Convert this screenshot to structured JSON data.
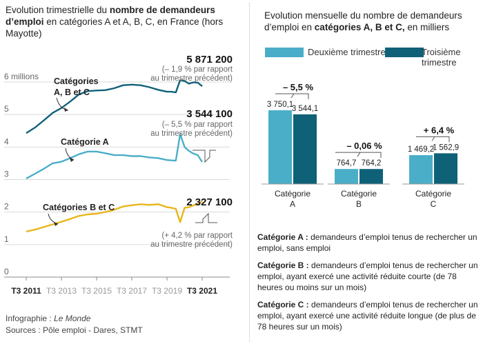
{
  "colors": {
    "teal_dark": "#0f6178",
    "teal_light": "#4aaec8",
    "yellow": "#e7b619",
    "axis": "#888888",
    "grid": "#d9d9d9",
    "callout": "#555555"
  },
  "left": {
    "title_pre": "Evolution trimestrielle du ",
    "title_bold": "nombre de demandeurs d’emploi",
    "title_post": " en catégories A et A, B, C, en France (hors Mayotte)",
    "label_abc_line1": "Catégories",
    "label_abc_line2": "A, B et C",
    "label_a": "Catégorie A",
    "label_bc": "Catégories B et C",
    "value_abc": "5 871 200",
    "note_abc_line1": "(– 1,9 % par rapport",
    "note_abc_line2": "au trimestre précédent)",
    "value_a": "3 544 100",
    "note_a_line1": "(– 5,5 % par rapport",
    "note_a_line2": "au trimestre précédent)",
    "value_bc": "2 327 100",
    "note_bc_line1": "(+ 4,2 % par rapport",
    "note_bc_line2": "au trimestre précédent)"
  },
  "right": {
    "title_pre": "Evolution mensuelle du nombre de demandeurs d’emploi en ",
    "title_bold": "catégories A, B et C,",
    "title_post": " en milliers",
    "legend": [
      "Deuxième trimestre",
      "Troisième trimestre"
    ]
  },
  "definitions": [
    {
      "term": "Catégorie A :",
      "text": " demandeurs d’emploi tenus de rechercher un emploi, sans emploi"
    },
    {
      "term": "Catégorie B :",
      "text": " demandeurs d’emploi tenus de rechercher un emploi, ayant exercé une activité réduite courte (de 78 heures ou moins sur un mois)"
    },
    {
      "term": "Catégorie C :",
      "text": " demandeurs d’emploi tenus de rechercher un emploi, ayant exercé une activité réduite longue (de plus de 78 heures sur un mois)"
    }
  ],
  "footer": {
    "credit_pre": "Infographie : ",
    "credit_name": "Le Monde",
    "sources": "Sources : Pôle emploi - Dares, STMT"
  },
  "chart_data": [
    {
      "type": "line",
      "title": "Evolution trimestrielle du nombre de demandeurs d’emploi en catégories A et A, B, C, en France (hors Mayotte)",
      "xlim": [
        2011.5,
        2021.5
      ],
      "ylim": [
        0,
        6
      ],
      "y_ticks": [
        {
          "value": 0,
          "label": "0"
        },
        {
          "value": 1,
          "label": "1"
        },
        {
          "value": 2,
          "label": "2"
        },
        {
          "value": 3,
          "label": "3"
        },
        {
          "value": 4,
          "label": "4"
        },
        {
          "value": 5,
          "label": "5"
        },
        {
          "value": 6,
          "label": "6 millions"
        }
      ],
      "x_ticks": [
        {
          "value": 2011.5,
          "label": "T3 2011",
          "bold": true
        },
        {
          "value": 2013.5,
          "label": "T3 2013",
          "bold": false
        },
        {
          "value": 2015.5,
          "label": "T3 2015",
          "bold": false
        },
        {
          "value": 2017.5,
          "label": "T3 2017",
          "bold": false
        },
        {
          "value": 2019.5,
          "label": "T3 2019",
          "bold": false
        },
        {
          "value": 2021.5,
          "label": "T3 2021",
          "bold": true
        }
      ],
      "series": [
        {
          "name": "Catégories A, B et C",
          "color": "#0f6178",
          "x": [
            2011.5,
            2012,
            2012.5,
            2013,
            2013.5,
            2014,
            2014.5,
            2015,
            2015.5,
            2016,
            2016.5,
            2017,
            2017.5,
            2018,
            2018.5,
            2019,
            2019.5,
            2019.75,
            2020,
            2020.25,
            2020.5,
            2020.75,
            2021,
            2021.25,
            2021.5
          ],
          "y": [
            4.43,
            4.6,
            4.82,
            5.05,
            5.2,
            5.4,
            5.62,
            5.72,
            5.74,
            5.75,
            5.81,
            5.9,
            5.92,
            5.9,
            5.84,
            5.76,
            5.7,
            5.7,
            5.68,
            6.06,
            6.03,
            5.95,
            5.99,
            5.98,
            5.87
          ]
        },
        {
          "name": "Catégorie A",
          "color": "#4aaec8",
          "x": [
            2011.5,
            2012,
            2012.5,
            2013,
            2013.5,
            2014,
            2014.5,
            2015,
            2015.5,
            2016,
            2016.5,
            2017,
            2017.5,
            2018,
            2018.5,
            2019,
            2019.5,
            2019.75,
            2020,
            2020.25,
            2020.5,
            2020.75,
            2021,
            2021.25,
            2021.5
          ],
          "y": [
            3.03,
            3.18,
            3.33,
            3.5,
            3.55,
            3.66,
            3.78,
            3.86,
            3.86,
            3.81,
            3.75,
            3.75,
            3.72,
            3.72,
            3.68,
            3.66,
            3.6,
            3.59,
            3.58,
            4.4,
            4.0,
            3.88,
            3.8,
            3.75,
            3.54
          ]
        },
        {
          "name": "Catégories B et C",
          "color": "#e7b619",
          "x": [
            2011.5,
            2012,
            2012.5,
            2013,
            2013.5,
            2014,
            2014.5,
            2015,
            2015.5,
            2016,
            2016.5,
            2017,
            2017.5,
            2018,
            2018.5,
            2019,
            2019.5,
            2019.75,
            2020,
            2020.25,
            2020.5,
            2020.75,
            2021,
            2021.25,
            2021.5
          ],
          "y": [
            1.4,
            1.46,
            1.54,
            1.62,
            1.7,
            1.79,
            1.88,
            1.93,
            1.95,
            2.0,
            2.07,
            2.17,
            2.21,
            2.24,
            2.22,
            2.24,
            2.15,
            2.13,
            2.1,
            1.69,
            2.13,
            2.15,
            2.21,
            2.24,
            2.33
          ]
        }
      ]
    },
    {
      "type": "bar",
      "title": "Evolution mensuelle du nombre de demandeurs d’emploi en catégories A, B et C, en milliers",
      "categories": [
        "Catégorie A",
        "Catégorie B",
        "Catégorie C"
      ],
      "series": [
        {
          "name": "Deuxième trimestre",
          "color": "#4aaec8",
          "values": [
            3750.1,
            764.7,
            1469.2
          ],
          "labels": [
            "3 750,1",
            "764,7",
            "1 469,2"
          ]
        },
        {
          "name": "Troisième trimestre",
          "color": "#0f6178",
          "values": [
            3544.1,
            764.2,
            1562.9
          ],
          "labels": [
            "3 544,1",
            "764,2",
            "1 562,9"
          ]
        }
      ],
      "changes": [
        "– 5,5 %",
        "– 0,06 %",
        "+ 6,4 %"
      ],
      "ylim": [
        0,
        3750.1
      ]
    }
  ]
}
